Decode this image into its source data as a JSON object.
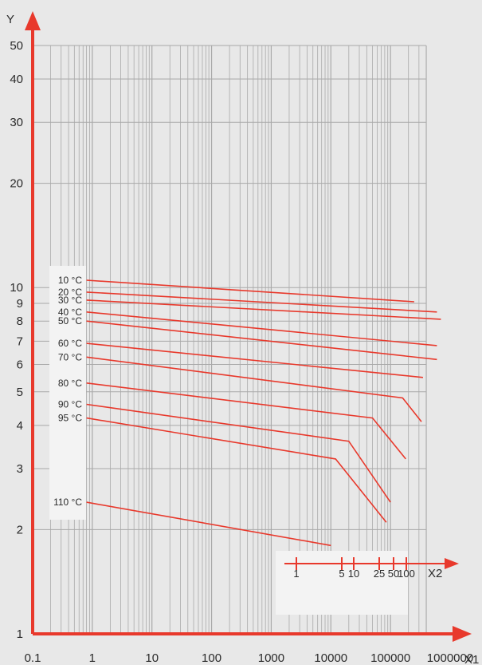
{
  "chart_data": {
    "type": "line",
    "x_scale": "log",
    "y_scale": "log",
    "x_axis_label": "X1",
    "y_axis_label": "Y",
    "x_ticks": [
      "0.1",
      "1",
      "10",
      "100",
      "1000",
      "10000",
      "100000",
      "1000000"
    ],
    "y_ticks": [
      "1",
      "2",
      "3",
      "4",
      "5",
      "6",
      "7",
      "8",
      "9",
      "10",
      "20",
      "30",
      "40",
      "50"
    ],
    "xlim": [
      0.1,
      1000000
    ],
    "ylim": [
      1,
      50
    ],
    "grid": true,
    "secondary_x_axis": {
      "label": "X2",
      "ticks": [
        "1",
        "5",
        "10",
        "25",
        "50",
        "100"
      ]
    },
    "series": [
      {
        "name": "10 °C",
        "points": [
          [
            0.8,
            10.5
          ],
          [
            250000,
            9.1
          ]
        ]
      },
      {
        "name": "20 °C",
        "points": [
          [
            0.8,
            9.7
          ],
          [
            600000,
            8.5
          ]
        ]
      },
      {
        "name": "30 °C",
        "points": [
          [
            0.8,
            9.2
          ],
          [
            700000,
            8.1
          ]
        ]
      },
      {
        "name": "40 °C",
        "points": [
          [
            0.8,
            8.5
          ],
          [
            600000,
            6.8
          ]
        ]
      },
      {
        "name": "50 °C",
        "points": [
          [
            0.8,
            8.0
          ],
          [
            600000,
            6.2
          ]
        ]
      },
      {
        "name": "60 °C",
        "points": [
          [
            0.8,
            6.9
          ],
          [
            350000,
            5.5
          ]
        ]
      },
      {
        "name": "70 °C",
        "points": [
          [
            0.8,
            6.3
          ],
          [
            160000,
            4.8
          ],
          [
            330000,
            4.1
          ]
        ]
      },
      {
        "name": "80 °C",
        "points": [
          [
            0.8,
            5.3
          ],
          [
            50000,
            4.2
          ],
          [
            180000,
            3.2
          ]
        ]
      },
      {
        "name": "90 °C",
        "points": [
          [
            0.8,
            4.6
          ],
          [
            20000,
            3.6
          ],
          [
            100000,
            2.4
          ]
        ]
      },
      {
        "name": "95 °C",
        "points": [
          [
            0.8,
            4.2
          ],
          [
            12000,
            3.2
          ],
          [
            85000,
            2.1
          ]
        ]
      },
      {
        "name": "110 °C",
        "points": [
          [
            0.8,
            2.4
          ],
          [
            10000,
            1.8
          ]
        ]
      }
    ]
  }
}
